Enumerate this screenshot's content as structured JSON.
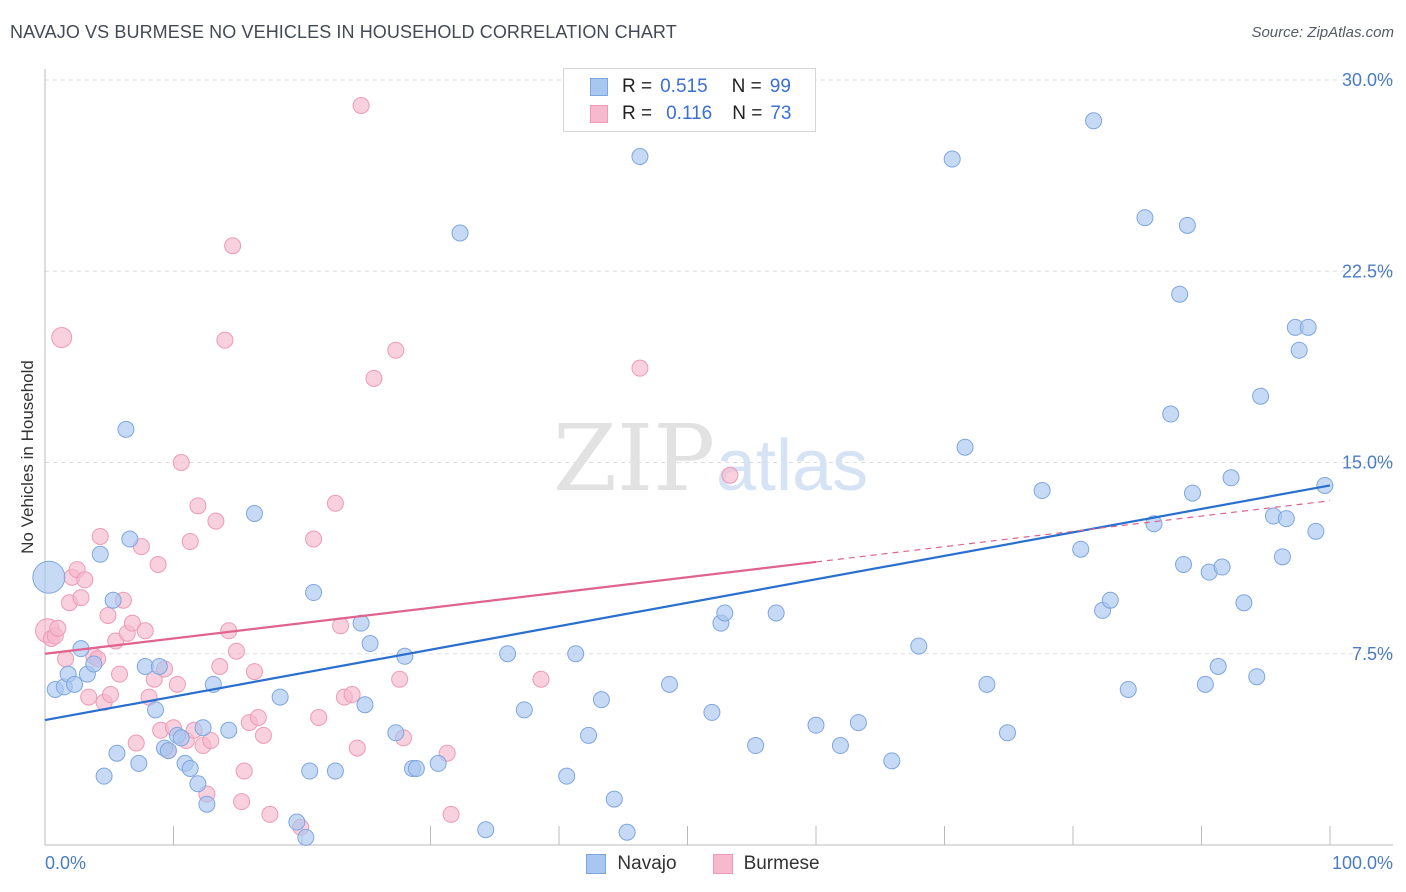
{
  "header": {
    "title": "NAVAJO VS BURMESE NO VEHICLES IN HOUSEHOLD CORRELATION CHART",
    "source": "Source: ZipAtlas.com"
  },
  "watermark": {
    "zip": "ZIP",
    "atlas": "atlas"
  },
  "legend": {
    "rows": [
      {
        "r_label": "R =",
        "r_value": "0.515",
        "n_label": "N =",
        "n_value": "99",
        "color": "#a9c6f0"
      },
      {
        "r_label": "R =",
        "r_value": "0.116",
        "n_label": "N =",
        "n_value": "73",
        "color": "#f6b9cd"
      }
    ]
  },
  "bottom_legend": {
    "navajo": "Navajo",
    "burmese": "Burmese"
  },
  "colors": {
    "navajo_fill": "#a9c6f0",
    "navajo_stroke": "#7ea6e0",
    "navajo_line": "#2a6fcf",
    "burmese_fill": "#f6b9cd",
    "burmese_stroke": "#ee9ab6",
    "burmese_line": "#e0628e",
    "tick_text": "#4a7cc4",
    "grid": "#dddddd"
  },
  "chart_data": {
    "type": "scatter",
    "title": "NAVAJO VS BURMESE NO VEHICLES IN HOUSEHOLD CORRELATION CHART",
    "xlabel": "",
    "ylabel": "No Vehicles in Household",
    "xlim": [
      0,
      100
    ],
    "ylim": [
      0,
      30
    ],
    "x_tick_labels": [
      "0.0%",
      "100.0%"
    ],
    "y_ticks": [
      7.5,
      15.0,
      22.5,
      30.0
    ],
    "y_tick_labels": [
      "7.5%",
      "15.0%",
      "22.5%",
      "30.0%"
    ],
    "grid": "horizontal dashed",
    "legend_position": "top-center",
    "series": [
      {
        "name": "Navajo",
        "R": 0.515,
        "N": 99,
        "trend": {
          "x0": 0,
          "y0": 4.9,
          "x1": 100,
          "y1": 14.1
        },
        "points": [
          [
            0.3,
            10.5,
            16
          ],
          [
            0.8,
            6.1,
            8
          ],
          [
            1.5,
            6.2,
            8
          ],
          [
            1.8,
            6.7,
            8
          ],
          [
            2.3,
            6.3,
            8
          ],
          [
            2.8,
            7.7,
            8
          ],
          [
            3.3,
            6.7,
            8
          ],
          [
            3.8,
            7.1,
            8
          ],
          [
            4.3,
            11.4,
            8
          ],
          [
            4.6,
            2.7,
            8
          ],
          [
            5.3,
            9.6,
            8
          ],
          [
            5.6,
            3.6,
            8
          ],
          [
            6.3,
            16.3,
            8
          ],
          [
            6.6,
            12.0,
            8
          ],
          [
            7.3,
            3.2,
            8
          ],
          [
            7.8,
            7.0,
            8
          ],
          [
            8.6,
            5.3,
            8
          ],
          [
            8.9,
            7.0,
            8
          ],
          [
            9.3,
            3.8,
            8
          ],
          [
            9.6,
            3.7,
            8
          ],
          [
            10.3,
            4.3,
            8
          ],
          [
            10.6,
            4.2,
            8
          ],
          [
            10.9,
            3.2,
            8
          ],
          [
            11.3,
            3.0,
            8
          ],
          [
            11.9,
            2.4,
            8
          ],
          [
            12.3,
            4.6,
            8
          ],
          [
            12.6,
            1.6,
            8
          ],
          [
            13.1,
            6.3,
            8
          ],
          [
            14.3,
            4.5,
            8
          ],
          [
            16.3,
            13.0,
            8
          ],
          [
            18.3,
            5.8,
            8
          ],
          [
            19.6,
            0.9,
            8
          ],
          [
            20.3,
            0.3,
            8
          ],
          [
            20.6,
            2.9,
            8
          ],
          [
            20.9,
            9.9,
            8
          ],
          [
            22.6,
            2.9,
            8
          ],
          [
            24.6,
            8.7,
            8
          ],
          [
            24.9,
            5.5,
            8
          ],
          [
            25.3,
            7.9,
            8
          ],
          [
            27.3,
            4.4,
            8
          ],
          [
            28.0,
            7.4,
            8
          ],
          [
            28.6,
            3.0,
            8
          ],
          [
            28.9,
            3.0,
            8
          ],
          [
            30.6,
            3.2,
            8
          ],
          [
            32.3,
            24.0,
            8
          ],
          [
            34.3,
            0.6,
            8
          ],
          [
            36.0,
            7.5,
            8
          ],
          [
            37.3,
            5.3,
            8
          ],
          [
            40.6,
            2.7,
            8
          ],
          [
            41.3,
            7.5,
            8
          ],
          [
            42.3,
            4.3,
            8
          ],
          [
            43.3,
            5.7,
            8
          ],
          [
            44.3,
            1.8,
            8
          ],
          [
            45.3,
            0.5,
            8
          ],
          [
            46.3,
            27.0,
            8
          ],
          [
            48.6,
            6.3,
            8
          ],
          [
            51.9,
            5.2,
            8
          ],
          [
            52.6,
            8.7,
            8
          ],
          [
            52.9,
            9.1,
            8
          ],
          [
            55.3,
            3.9,
            8
          ],
          [
            56.9,
            9.1,
            8
          ],
          [
            60.0,
            4.7,
            8
          ],
          [
            61.9,
            3.9,
            8
          ],
          [
            63.3,
            4.8,
            8
          ],
          [
            65.9,
            3.3,
            8
          ],
          [
            68.0,
            7.8,
            8
          ],
          [
            70.6,
            26.9,
            8
          ],
          [
            71.6,
            15.6,
            8
          ],
          [
            73.3,
            6.3,
            8
          ],
          [
            74.9,
            4.4,
            8
          ],
          [
            77.6,
            13.9,
            8
          ],
          [
            80.6,
            11.6,
            8
          ],
          [
            81.6,
            28.4,
            8
          ],
          [
            82.3,
            9.2,
            8
          ],
          [
            82.9,
            9.6,
            8
          ],
          [
            84.3,
            6.1,
            8
          ],
          [
            85.6,
            24.6,
            8
          ],
          [
            86.3,
            12.6,
            8
          ],
          [
            87.6,
            16.9,
            8
          ],
          [
            88.3,
            21.6,
            8
          ],
          [
            88.6,
            11.0,
            8
          ],
          [
            88.9,
            24.3,
            8
          ],
          [
            89.3,
            13.8,
            8
          ],
          [
            90.3,
            6.3,
            8
          ],
          [
            90.6,
            10.7,
            8
          ],
          [
            91.3,
            7.0,
            8
          ],
          [
            91.6,
            10.9,
            8
          ],
          [
            92.3,
            14.4,
            8
          ],
          [
            93.3,
            9.5,
            8
          ],
          [
            94.3,
            6.6,
            8
          ],
          [
            94.6,
            17.6,
            8
          ],
          [
            95.6,
            12.9,
            8
          ],
          [
            96.3,
            11.3,
            8
          ],
          [
            96.6,
            12.8,
            8
          ],
          [
            97.3,
            20.3,
            8
          ],
          [
            97.6,
            19.4,
            8
          ],
          [
            98.3,
            20.3,
            8
          ],
          [
            98.9,
            12.3,
            8
          ],
          [
            99.6,
            14.1,
            8
          ]
        ]
      },
      {
        "name": "Burmese",
        "R": 0.116,
        "N": 73,
        "trend": {
          "x0": 0,
          "y0": 7.5,
          "x1": 60,
          "y1": 11.1
        },
        "trend_extension": {
          "x0": 60,
          "y0": 11.1,
          "x1": 100,
          "y1": 13.5
        },
        "points": [
          [
            0.2,
            8.4,
            12
          ],
          [
            0.5,
            8.1,
            8
          ],
          [
            0.8,
            8.2,
            8
          ],
          [
            1.0,
            8.5,
            8
          ],
          [
            1.3,
            19.9,
            10
          ],
          [
            1.6,
            7.3,
            8
          ],
          [
            1.9,
            9.5,
            8
          ],
          [
            2.1,
            10.5,
            8
          ],
          [
            2.5,
            10.8,
            8
          ],
          [
            2.8,
            9.7,
            8
          ],
          [
            3.1,
            10.4,
            8
          ],
          [
            3.4,
            5.8,
            8
          ],
          [
            3.8,
            7.4,
            8
          ],
          [
            4.1,
            7.3,
            8
          ],
          [
            4.3,
            12.1,
            8
          ],
          [
            4.6,
            5.6,
            8
          ],
          [
            4.9,
            9.0,
            8
          ],
          [
            5.1,
            5.9,
            8
          ],
          [
            5.5,
            8.0,
            8
          ],
          [
            5.8,
            6.7,
            8
          ],
          [
            6.1,
            9.6,
            8
          ],
          [
            6.4,
            8.3,
            8
          ],
          [
            6.8,
            8.7,
            8
          ],
          [
            7.1,
            4.0,
            8
          ],
          [
            7.5,
            11.7,
            8
          ],
          [
            7.8,
            8.4,
            8
          ],
          [
            8.1,
            5.8,
            8
          ],
          [
            8.5,
            6.5,
            8
          ],
          [
            8.8,
            11.0,
            8
          ],
          [
            9.0,
            4.5,
            8
          ],
          [
            9.3,
            6.9,
            8
          ],
          [
            9.6,
            3.7,
            8
          ],
          [
            10.0,
            4.6,
            8
          ],
          [
            10.3,
            6.3,
            8
          ],
          [
            10.6,
            15.0,
            8
          ],
          [
            11.0,
            4.1,
            8
          ],
          [
            11.3,
            11.9,
            8
          ],
          [
            11.6,
            4.5,
            8
          ],
          [
            11.9,
            13.3,
            8
          ],
          [
            12.3,
            3.9,
            8
          ],
          [
            12.6,
            2.0,
            8
          ],
          [
            12.9,
            4.1,
            8
          ],
          [
            13.3,
            12.7,
            8
          ],
          [
            13.6,
            7.0,
            8
          ],
          [
            14.0,
            19.8,
            8
          ],
          [
            14.3,
            8.4,
            8
          ],
          [
            14.6,
            23.5,
            8
          ],
          [
            14.9,
            7.6,
            8
          ],
          [
            15.3,
            1.7,
            8
          ],
          [
            15.5,
            2.9,
            8
          ],
          [
            15.9,
            4.8,
            8
          ],
          [
            16.3,
            6.8,
            8
          ],
          [
            16.6,
            5.0,
            8
          ],
          [
            17.0,
            4.3,
            8
          ],
          [
            17.5,
            1.2,
            8
          ],
          [
            19.9,
            0.7,
            8
          ],
          [
            20.9,
            12.0,
            8
          ],
          [
            21.3,
            5.0,
            8
          ],
          [
            22.6,
            13.4,
            8
          ],
          [
            23.0,
            8.6,
            8
          ],
          [
            23.3,
            5.8,
            8
          ],
          [
            23.9,
            5.9,
            8
          ],
          [
            24.3,
            3.8,
            8
          ],
          [
            24.6,
            29.0,
            8
          ],
          [
            25.6,
            18.3,
            8
          ],
          [
            27.3,
            19.4,
            8
          ],
          [
            27.6,
            6.5,
            8
          ],
          [
            27.9,
            4.2,
            8
          ],
          [
            31.3,
            3.6,
            8
          ],
          [
            31.6,
            1.2,
            8
          ],
          [
            38.6,
            6.5,
            8
          ],
          [
            46.3,
            18.7,
            8
          ],
          [
            53.3,
            14.5,
            8
          ]
        ]
      }
    ]
  }
}
